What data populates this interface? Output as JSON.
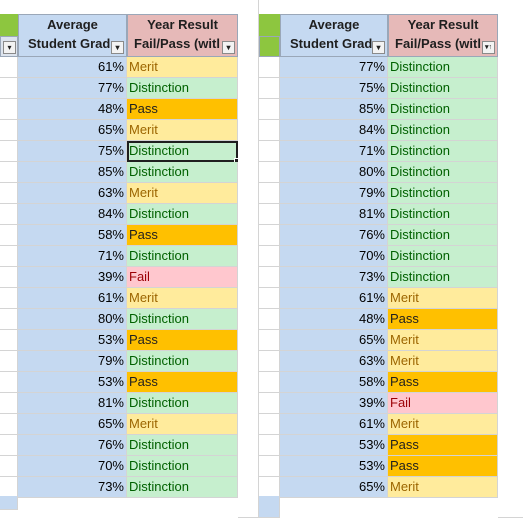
{
  "headers": {
    "avg_line1": "Average",
    "avg_line2": "Student Grad",
    "res_line1": "Year Result",
    "res_line2": "Fail/Pass (witl"
  },
  "left_table": {
    "rows": [
      {
        "pct": "61%",
        "result": "Merit"
      },
      {
        "pct": "77%",
        "result": "Distinction"
      },
      {
        "pct": "48%",
        "result": "Pass"
      },
      {
        "pct": "65%",
        "result": "Merit"
      },
      {
        "pct": "75%",
        "result": "Distinction"
      },
      {
        "pct": "85%",
        "result": "Distinction"
      },
      {
        "pct": "63%",
        "result": "Merit"
      },
      {
        "pct": "84%",
        "result": "Distinction"
      },
      {
        "pct": "58%",
        "result": "Pass"
      },
      {
        "pct": "71%",
        "result": "Distinction"
      },
      {
        "pct": "39%",
        "result": "Fail"
      },
      {
        "pct": "61%",
        "result": "Merit"
      },
      {
        "pct": "80%",
        "result": "Distinction"
      },
      {
        "pct": "53%",
        "result": "Pass"
      },
      {
        "pct": "79%",
        "result": "Distinction"
      },
      {
        "pct": "53%",
        "result": "Pass"
      },
      {
        "pct": "81%",
        "result": "Distinction"
      },
      {
        "pct": "65%",
        "result": "Merit"
      },
      {
        "pct": "76%",
        "result": "Distinction"
      },
      {
        "pct": "70%",
        "result": "Distinction"
      },
      {
        "pct": "73%",
        "result": "Distinction"
      }
    ]
  },
  "right_table": {
    "rows": [
      {
        "pct": "77%",
        "result": "Distinction"
      },
      {
        "pct": "75%",
        "result": "Distinction"
      },
      {
        "pct": "85%",
        "result": "Distinction"
      },
      {
        "pct": "84%",
        "result": "Distinction"
      },
      {
        "pct": "71%",
        "result": "Distinction"
      },
      {
        "pct": "80%",
        "result": "Distinction"
      },
      {
        "pct": "79%",
        "result": "Distinction"
      },
      {
        "pct": "81%",
        "result": "Distinction"
      },
      {
        "pct": "76%",
        "result": "Distinction"
      },
      {
        "pct": "70%",
        "result": "Distinction"
      },
      {
        "pct": "73%",
        "result": "Distinction"
      },
      {
        "pct": "61%",
        "result": "Merit"
      },
      {
        "pct": "48%",
        "result": "Pass"
      },
      {
        "pct": "65%",
        "result": "Merit"
      },
      {
        "pct": "63%",
        "result": "Merit"
      },
      {
        "pct": "58%",
        "result": "Pass"
      },
      {
        "pct": "39%",
        "result": "Fail"
      },
      {
        "pct": "61%",
        "result": "Merit"
      },
      {
        "pct": "53%",
        "result": "Pass"
      },
      {
        "pct": "53%",
        "result": "Pass"
      },
      {
        "pct": "65%",
        "result": "Merit"
      }
    ]
  },
  "icons": {
    "filter": "dropdown-arrow-icon",
    "sort_filter": "sort-ascending-filter-icon"
  },
  "colors": {
    "header_blue": "#c5d9f1",
    "header_pink": "#e6b9b8",
    "merit_fill": "#ffeb9c",
    "distinction_fill": "#c6efce",
    "pass_fill": "#ffc000",
    "fail_fill": "#ffc7ce"
  }
}
